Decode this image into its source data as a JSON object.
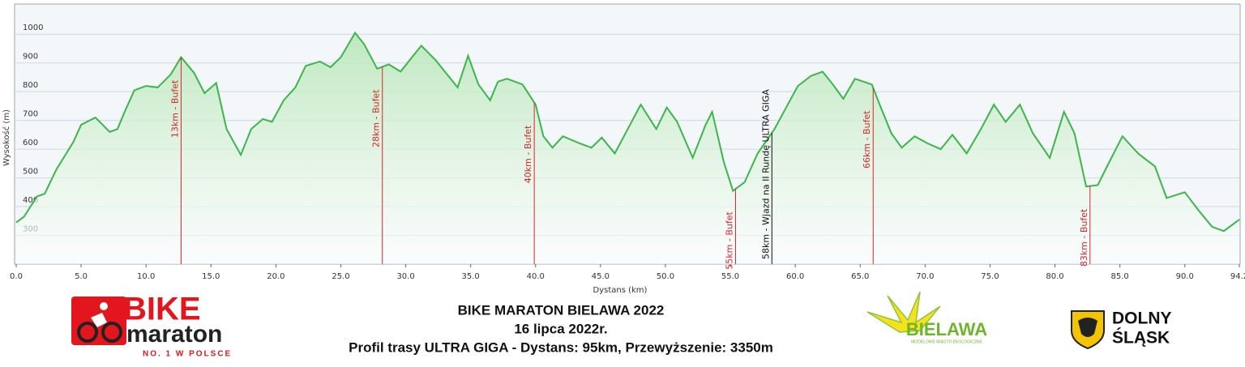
{
  "chart_data": {
    "type": "area",
    "title": "BIKE MARATON BIELAWA 2022",
    "subtitle": "16 lipca 2022r.",
    "description": "Profil trasy ULTRA GIGA - Dystans: 95km, Przewyższenie: 3350m",
    "xlabel": "Dystans (km)",
    "ylabel": "Wysokość (m)",
    "xlim": [
      0,
      94.2
    ],
    "ylim": [
      200,
      1105
    ],
    "xticks": [
      {
        "value": 0,
        "label": "0.0"
      },
      {
        "value": 5,
        "label": "5.0"
      },
      {
        "value": 10,
        "label": "10.0"
      },
      {
        "value": 15,
        "label": "15.0"
      },
      {
        "value": 20,
        "label": "20.0"
      },
      {
        "value": 25,
        "label": "25.0"
      },
      {
        "value": 30,
        "label": "30.0"
      },
      {
        "value": 35,
        "label": "35.0"
      },
      {
        "value": 40,
        "label": "40.0"
      },
      {
        "value": 45,
        "label": "45.0"
      },
      {
        "value": 50,
        "label": "50.0"
      },
      {
        "value": 55,
        "label": "55.0"
      },
      {
        "value": 60,
        "label": "60.0"
      },
      {
        "value": 65,
        "label": "65.0"
      },
      {
        "value": 70,
        "label": "70.0"
      },
      {
        "value": 75,
        "label": "75.0"
      },
      {
        "value": 80,
        "label": "80.0"
      },
      {
        "value": 85,
        "label": "85.0"
      },
      {
        "value": 90,
        "label": "90.0"
      },
      94.2
    ],
    "yticks": [
      300,
      400,
      500,
      600,
      700,
      800,
      900,
      1000
    ],
    "grid": true,
    "color": "#3cb54a",
    "x": [
      0,
      0.6,
      1.6,
      2.2,
      3.1,
      4.4,
      5.0,
      6.1,
      7.2,
      7.8,
      8.4,
      9.1,
      10.0,
      10.9,
      11.9,
      12.7,
      13.7,
      14.5,
      15.4,
      16.2,
      17.3,
      18.1,
      19.0,
      19.7,
      20.6,
      21.5,
      22.3,
      23.4,
      24.2,
      25.0,
      26.1,
      26.8,
      27.8,
      28.7,
      29.6,
      30.3,
      31.2,
      32.3,
      33.1,
      34.0,
      34.8,
      35.6,
      36.5,
      37.1,
      37.8,
      39.0,
      40.0,
      40.6,
      41.3,
      42.1,
      43.4,
      44.3,
      45.1,
      46.1,
      47.1,
      48.1,
      49.3,
      50.1,
      50.9,
      52.1,
      53.1,
      53.6,
      54.5,
      55.2,
      56.1,
      57.1,
      58.4,
      59.3,
      60.2,
      61.2,
      62.1,
      62.9,
      63.7,
      64.6,
      65.9,
      66.5,
      67.4,
      68.2,
      69.2,
      70.2,
      71.2,
      72.1,
      73.2,
      74.3,
      75.3,
      76.2,
      77.3,
      78.3,
      79.6,
      80.7,
      81.5,
      82.4,
      83.3,
      83.9,
      85.2,
      86.4,
      87.7,
      88.6,
      90.0,
      91.1,
      92.1,
      93.0,
      94.2
    ],
    "values": [
      345,
      365,
      435,
      445,
      530,
      625,
      685,
      710,
      660,
      670,
      735,
      805,
      820,
      815,
      860,
      920,
      865,
      795,
      830,
      670,
      580,
      670,
      705,
      695,
      770,
      815,
      890,
      905,
      885,
      920,
      1005,
      965,
      880,
      895,
      870,
      910,
      960,
      910,
      865,
      815,
      925,
      825,
      770,
      835,
      845,
      825,
      755,
      645,
      605,
      645,
      620,
      605,
      640,
      585,
      670,
      755,
      670,
      745,
      695,
      570,
      685,
      730,
      555,
      455,
      485,
      585,
      670,
      745,
      820,
      855,
      870,
      825,
      775,
      845,
      825,
      755,
      655,
      605,
      645,
      620,
      600,
      650,
      585,
      670,
      755,
      695,
      755,
      655,
      570,
      730,
      655,
      470,
      475,
      530,
      645,
      585,
      540,
      430,
      450,
      385,
      330,
      315,
      355
    ],
    "annotations": [
      {
        "x": 12.7,
        "label": "13km - Bufet",
        "color": "#d9252a"
      },
      {
        "x": 28.2,
        "label": "28km - Bufet",
        "color": "#d9252a"
      },
      {
        "x": 39.9,
        "label": "40km - Bufet",
        "color": "#d9252a"
      },
      {
        "x": 55.4,
        "label": "55km - Bufet",
        "color": "#d9252a"
      },
      {
        "x": 58.2,
        "label": "58km - Wjazd na II Rundę ULTRA GIGA",
        "color": "#111111"
      },
      {
        "x": 66.0,
        "label": "66km - Bufet",
        "color": "#d9252a"
      },
      {
        "x": 82.7,
        "label": "83km - Bufet",
        "color": "#d9252a"
      }
    ]
  },
  "logos": {
    "bike": "BIKE",
    "maraton": "maraton",
    "tagline": "NO. 1 W POLSCE",
    "bielawa": "BIELAWA",
    "bielawa_tagline": "MODELOWE MIASTO EKOLOGICZNE",
    "dolny": "DOLNY",
    "slask": "ŚLĄSK"
  }
}
